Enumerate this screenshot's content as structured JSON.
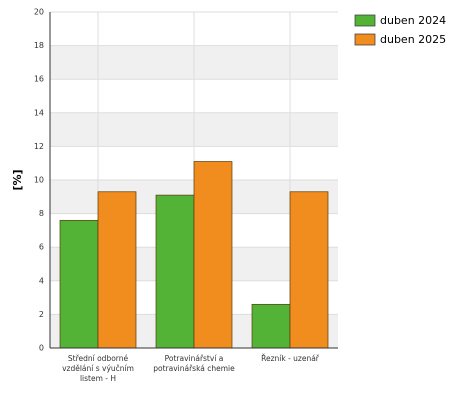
{
  "chart_data": {
    "type": "bar",
    "y_label": "[%]",
    "categories": [
      "Střední odborné vzdělání s výučním listem - H",
      "Potravinářství a potravinářská chemie",
      "Řezník - uzenář"
    ],
    "series": [
      {
        "name": "duben 2024",
        "color": "#52b336",
        "values": [
          7.6,
          9.1,
          2.6
        ]
      },
      {
        "name": "duben 2025",
        "color": "#f18c1e",
        "values": [
          9.3,
          11.1,
          9.3
        ]
      }
    ],
    "ylim": [
      0,
      20
    ],
    "yticks": [
      0,
      2,
      4,
      6,
      8,
      10,
      12,
      14,
      16,
      18,
      20
    ],
    "grid": true,
    "legend": "top-right"
  }
}
